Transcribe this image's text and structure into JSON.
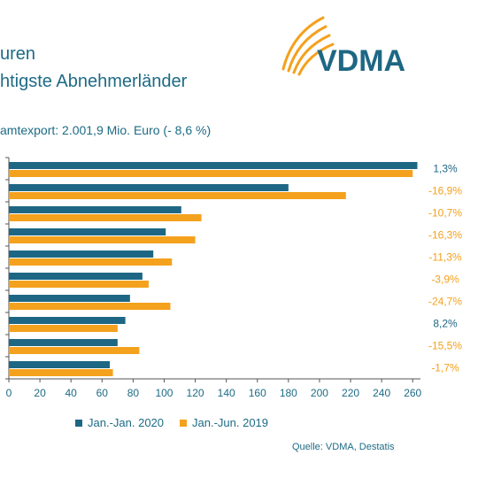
{
  "header": {
    "title_line1": "uren",
    "title_line2": "htigste Abnehmerländer",
    "subtitle": "amtexport: 2.001,9 Mio. Euro (- 8,6 %)"
  },
  "logo": {
    "text": "VDMA",
    "icon": "vdma-arc-logo-icon"
  },
  "colors": {
    "series_2020": "#1e6784",
    "series_2019": "#f4a11d",
    "positive": "#1e6784",
    "negative": "#f4a11d",
    "axis": "#555555"
  },
  "chart_data": {
    "type": "bar",
    "orientation": "horizontal",
    "x_ticks": [
      0,
      20,
      40,
      60,
      80,
      100,
      120,
      140,
      160,
      180,
      200,
      220,
      240,
      260
    ],
    "xlim": [
      0,
      265
    ],
    "series": [
      {
        "name": "Jan.-Jan. 2020",
        "values": [
          263,
          180,
          111,
          101,
          93,
          86,
          78,
          75,
          70,
          65
        ]
      },
      {
        "name": "Jan.-Jun. 2019",
        "values": [
          260,
          217,
          124,
          120,
          105,
          90,
          104,
          70,
          84,
          67
        ]
      }
    ],
    "change_labels": [
      "1,3%",
      "-16,9%",
      "-10,7%",
      "-16,3%",
      "-11,3%",
      "-3,9%",
      "-24,7%",
      "8,2%",
      "-15,5%",
      "-1,7%"
    ]
  },
  "legend": {
    "items": [
      "Jan.-Jan. 2020",
      "Jan.-Jun. 2019"
    ]
  },
  "source": "Quelle: VDMA, Destatis"
}
